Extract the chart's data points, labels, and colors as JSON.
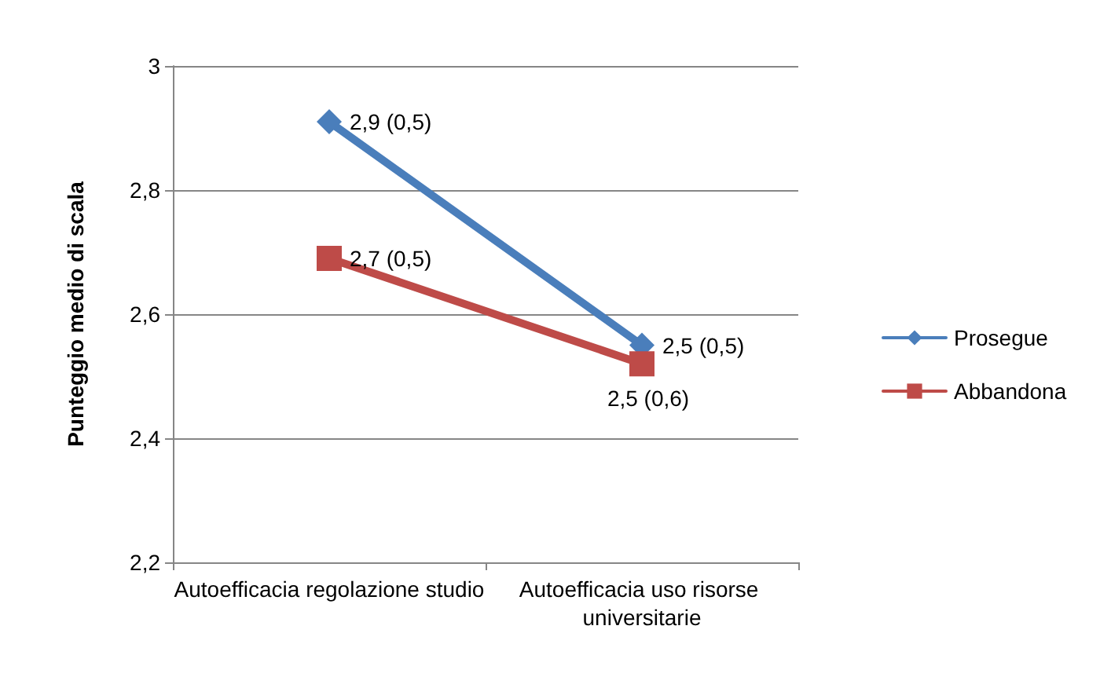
{
  "chart_data": {
    "type": "line",
    "ylabel": "Punteggio medio di scala",
    "categories": [
      "Autoefficacia regolazione studio",
      "Autoefficacia uso risorse universitarie"
    ],
    "series": [
      {
        "name": "Prosegue",
        "color": "#4a7ebb",
        "marker": "diamond",
        "values": [
          2.91,
          2.55
        ],
        "value_labels": [
          "2,9 (0,5)",
          "2,5 (0,5)"
        ]
      },
      {
        "name": "Abbandona",
        "color": "#be4b48",
        "marker": "square",
        "values": [
          2.69,
          2.52
        ],
        "value_labels": [
          "2,7 (0,5)",
          "2,5 (0,6)"
        ]
      }
    ],
    "ylim": [
      2.2,
      3
    ],
    "yticks": [
      {
        "value": 2.2,
        "label": "2,2"
      },
      {
        "value": 2.4,
        "label": "2,4"
      },
      {
        "value": 2.6,
        "label": "2,6"
      },
      {
        "value": 2.8,
        "label": "2,8"
      },
      {
        "value": 3,
        "label": "3"
      }
    ],
    "grid": "y",
    "legend": "right",
    "line_style": "solid"
  }
}
